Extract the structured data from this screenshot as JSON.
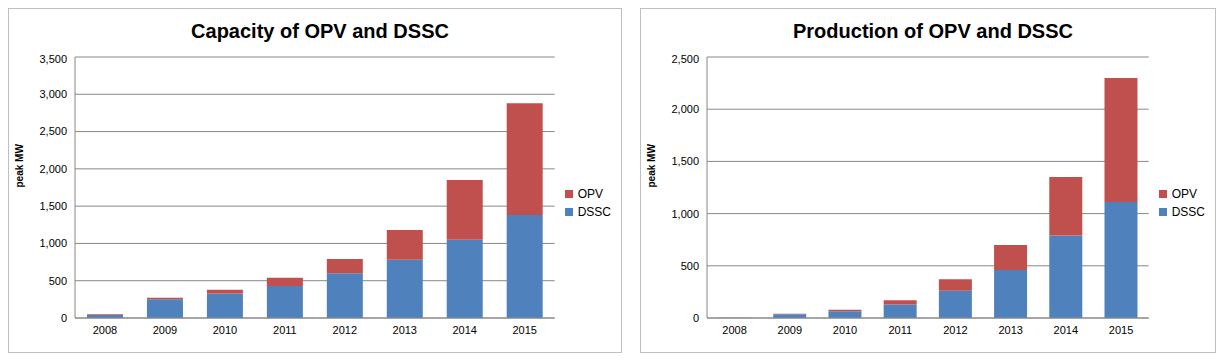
{
  "chart_data": [
    {
      "type": "bar",
      "title": "Capacity of OPV and DSSC",
      "y_label": "peak MW",
      "stacked": true,
      "grid": true,
      "legend": "right",
      "categories": [
        "2008",
        "2009",
        "2010",
        "2011",
        "2012",
        "2013",
        "2014",
        "2015"
      ],
      "series": [
        {
          "name": "DSSC",
          "color": "#4f81bd",
          "values": [
            40,
            250,
            330,
            430,
            600,
            780,
            1050,
            1380
          ]
        },
        {
          "name": "OPV",
          "color": "#c0504d",
          "values": [
            10,
            20,
            50,
            110,
            190,
            400,
            800,
            1500
          ]
        }
      ],
      "ylim": [
        0,
        3500
      ],
      "yticks": [
        0,
        500,
        {
          "value": 1000,
          "label": "1,000"
        },
        {
          "value": 1500,
          "label": "1,500"
        },
        {
          "value": 2000,
          "label": "2,000"
        },
        {
          "value": 2500,
          "label": "2,500"
        },
        {
          "value": 3000,
          "label": "3,000"
        },
        {
          "value": 3500,
          "label": "3,500"
        }
      ]
    },
    {
      "type": "bar",
      "title": "Production of OPV and DSSC",
      "y_label": "peak MW",
      "stacked": true,
      "grid": true,
      "legend": "right",
      "categories": [
        "2008",
        "2009",
        "2010",
        "2011",
        "2012",
        "2013",
        "2014",
        "2015"
      ],
      "series": [
        {
          "name": "DSSC",
          "color": "#4f81bd",
          "values": [
            2,
            35,
            65,
            130,
            260,
            460,
            790,
            1110
          ]
        },
        {
          "name": "OPV",
          "color": "#c0504d",
          "values": [
            0,
            5,
            15,
            40,
            110,
            240,
            560,
            1190
          ]
        }
      ],
      "ylim": [
        0,
        2500
      ],
      "yticks": [
        0,
        500,
        {
          "value": 1000,
          "label": "1,000"
        },
        {
          "value": 1500,
          "label": "1,500"
        },
        {
          "value": 2000,
          "label": "2,000"
        },
        {
          "value": 2500,
          "label": "2,500"
        }
      ]
    }
  ]
}
